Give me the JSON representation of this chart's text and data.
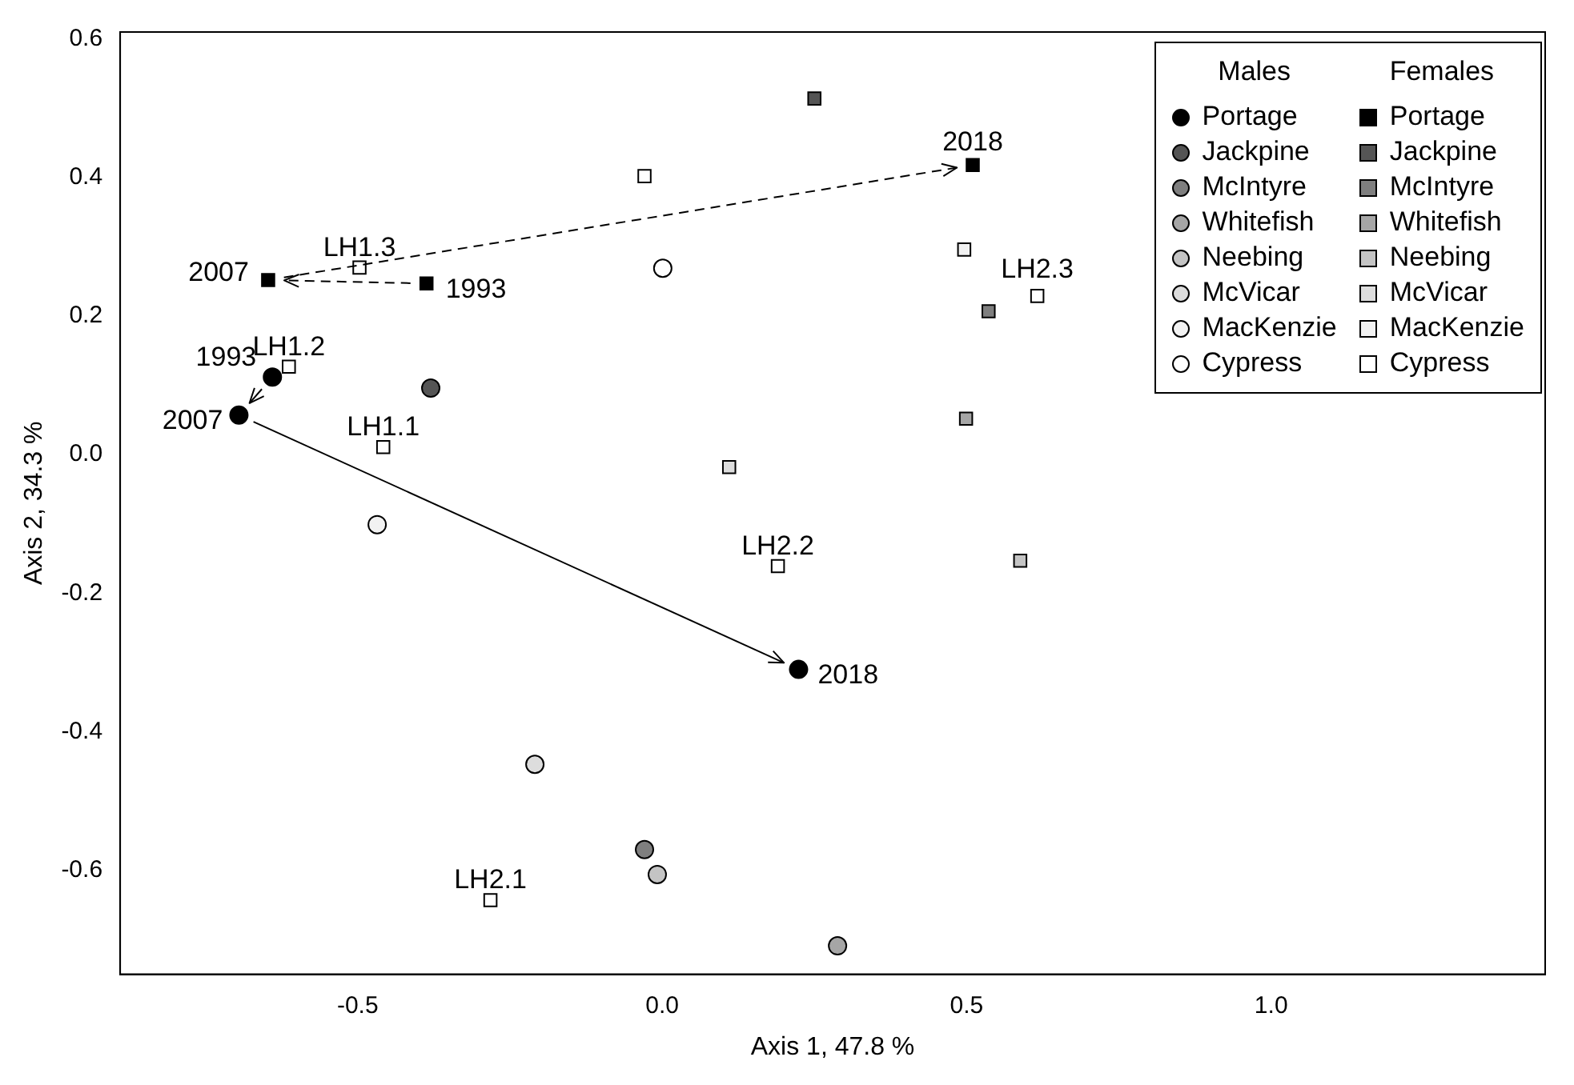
{
  "chart_data": {
    "type": "scatter",
    "xlabel": "Axis 1, 47.8 %",
    "ylabel": "Axis 2, 34.3 %",
    "xlim": [
      -0.89,
      1.45
    ],
    "ylim": [
      -0.75,
      0.61
    ],
    "xticks": [
      {
        "value": -0.5,
        "label": "-0.5"
      },
      {
        "value": 0,
        "label": "0.0"
      },
      {
        "value": 0.5,
        "label": "0.5"
      },
      {
        "value": 1,
        "label": "1.0"
      }
    ],
    "yticks": [
      {
        "value": -0.6,
        "label": "-0.6"
      },
      {
        "value": -0.4,
        "label": "-0.4"
      },
      {
        "value": -0.2,
        "label": "-0.2"
      },
      {
        "value": 0,
        "label": "0.0"
      },
      {
        "value": 0.2,
        "label": "0.2"
      },
      {
        "value": 0.4,
        "label": "0.4"
      },
      {
        "value": 0.6,
        "label": "0.6"
      }
    ],
    "grid": false,
    "legend": "top right",
    "series": [
      {
        "name": "Portage",
        "color": "#000000",
        "marker": "circle",
        "line_style": "solid",
        "x": [
          -0.64,
          -0.695,
          0.224
        ],
        "values": [
          0.112,
          0.057,
          -0.31
        ]
      },
      {
        "name": "Jackpine",
        "color": "#555555",
        "marker": "circle",
        "x": [
          -0.38
        ],
        "values": [
          0.096
        ]
      },
      {
        "name": "McIntyre",
        "color": "#7f7f7f",
        "marker": "circle",
        "x": [
          -0.029
        ],
        "values": [
          -0.57
        ]
      },
      {
        "name": "Whitefish",
        "color": "#a6a6a6",
        "marker": "circle",
        "x": [
          0.288
        ],
        "values": [
          -0.709
        ]
      },
      {
        "name": "Neebing",
        "color": "#c4c4c4",
        "marker": "circle",
        "x": [
          -0.008
        ],
        "values": [
          -0.606
        ]
      },
      {
        "name": "McVicar",
        "color": "#dddddd",
        "marker": "circle",
        "x": [
          -0.209
        ],
        "values": [
          -0.447
        ]
      },
      {
        "name": "MacKenzie",
        "color": "#f2f2f2",
        "marker": "circle",
        "x": [
          -0.468
        ],
        "values": [
          -0.101
        ]
      },
      {
        "name": "Cypress",
        "color": "#ffffff",
        "marker": "circle",
        "x": [
          0.001
        ],
        "values": [
          0.269
        ]
      },
      {
        "name": "Portage",
        "color": "#000000",
        "marker": "square",
        "line_style": "dashed",
        "x": [
          -0.387,
          -0.647,
          0.51
        ],
        "values": [
          0.247,
          0.252,
          0.418
        ]
      },
      {
        "name": "Jackpine",
        "color": "#555555",
        "marker": "square",
        "x": [
          0.25
        ],
        "values": [
          0.514
        ]
      },
      {
        "name": "McIntyre",
        "color": "#7f7f7f",
        "marker": "square",
        "x": [
          0.536
        ],
        "values": [
          0.207
        ]
      },
      {
        "name": "Whitefish",
        "color": "#a6a6a6",
        "marker": "square",
        "x": [
          0.499
        ],
        "values": [
          0.052
        ]
      },
      {
        "name": "Neebing",
        "color": "#c4c4c4",
        "marker": "square",
        "x": [
          0.588
        ],
        "values": [
          -0.153
        ]
      },
      {
        "name": "McVicar",
        "color": "#dddddd",
        "marker": "square",
        "x": [
          0.11
        ],
        "values": [
          -0.018
        ]
      },
      {
        "name": "MacKenzie",
        "color": "#f2f2f2",
        "marker": "square",
        "x": [
          0.496
        ],
        "values": [
          0.296
        ]
      },
      {
        "name": "Cypress",
        "color": "#ffffff",
        "marker": "square",
        "x": [
          -0.029
        ],
        "values": [
          0.402
        ]
      },
      {
        "color": "#ffffff",
        "marker": "square",
        "x": [
          -0.458,
          -0.613,
          -0.497,
          -0.282,
          0.19,
          0.616
        ],
        "values": [
          0.011,
          0.127,
          0.27,
          -0.643,
          -0.161,
          0.229
        ]
      }
    ],
    "annotations": [
      "Males",
      "Females",
      {
        "text": "LH1.1",
        "x": -0.458,
        "y": 0.011
      },
      {
        "text": "LH1.2",
        "x": -0.613,
        "y": 0.127
      },
      {
        "text": "LH1.3",
        "x": -0.497,
        "y": 0.27
      },
      {
        "text": "LH2.1",
        "x": -0.282,
        "y": -0.643
      },
      {
        "text": "LH2.2",
        "x": 0.19,
        "y": -0.161
      },
      {
        "text": "LH2.3",
        "x": 0.616,
        "y": 0.229
      },
      {
        "text": "1993",
        "x": -0.64,
        "y": 0.112
      },
      {
        "text": "2007",
        "x": -0.695,
        "y": 0.057
      },
      {
        "text": "2018",
        "x": 0.224,
        "y": -0.31
      },
      {
        "text": "1993",
        "x": -0.387,
        "y": 0.247
      },
      {
        "text": "2007",
        "x": -0.647,
        "y": 0.252
      },
      {
        "text": "2018",
        "x": 0.51,
        "y": 0.418
      }
    ]
  }
}
